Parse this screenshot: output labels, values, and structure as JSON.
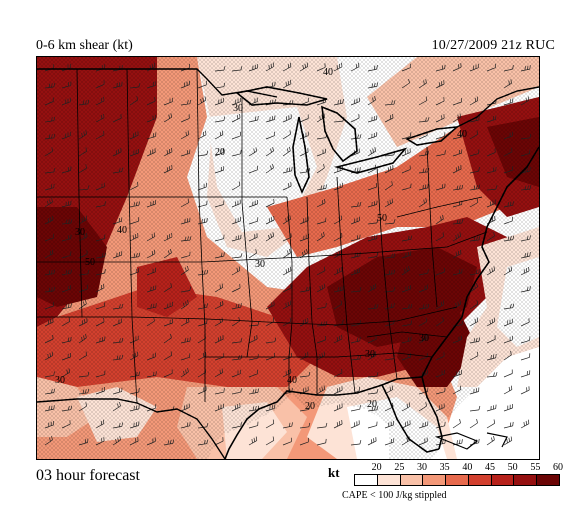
{
  "header": {
    "field_title": "0-6 km shear (kt)",
    "valid_time": "10/27/2009  21z  RUC"
  },
  "footer": {
    "forecast_label": "03 hour forecast"
  },
  "legend": {
    "unit": "kt",
    "ticks": [
      "20",
      "25",
      "30",
      "35",
      "40",
      "45",
      "50",
      "55",
      "60"
    ],
    "colors": [
      "#ffffff",
      "#fde3d6",
      "#f9c1a8",
      "#f39878",
      "#e76a4d",
      "#d2402e",
      "#b7221b",
      "#951010",
      "#6b0505"
    ],
    "note": "CAPE < 100 J/kg stippled"
  },
  "map_labels": {
    "contour_labels": [
      "40",
      "30",
      "20",
      "30",
      "40",
      "50",
      "30",
      "50",
      "40",
      "30",
      "20",
      "40",
      "30",
      "30",
      "20"
    ]
  },
  "colors": {
    "shear_lt20": "#ffffff",
    "shear_20_25": "#fde3d6",
    "shear_25_30": "#f9c1a8",
    "shear_30_35": "#f39878",
    "shear_35_40": "#e76a4d",
    "shear_40_45": "#d2402e",
    "shear_45_50": "#b7221b",
    "shear_50_55": "#951010",
    "shear_60_plus": "#6b0505",
    "stipple": "#000000",
    "boundary_line": "#000000",
    "wind_barb": "#222222"
  }
}
